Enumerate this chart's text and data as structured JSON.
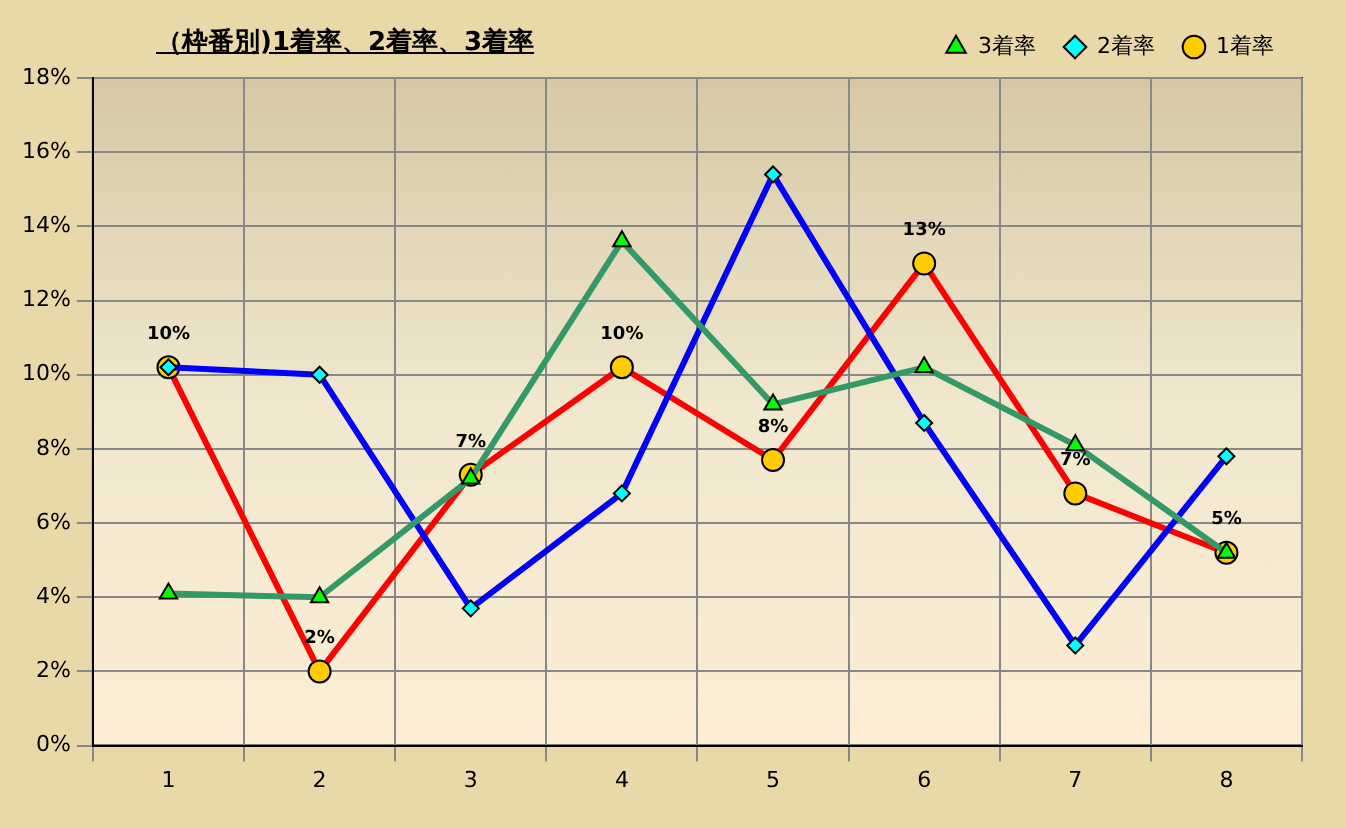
{
  "chart_data": {
    "type": "line",
    "title": "（枠番別)1着率、2着率、3着率",
    "categories": [
      "1",
      "2",
      "3",
      "4",
      "5",
      "6",
      "7",
      "8"
    ],
    "series": [
      {
        "name": "3着率",
        "color": "#339966",
        "marker": "triangle",
        "values": [
          4.1,
          4.0,
          7.2,
          13.6,
          9.2,
          10.2,
          8.1,
          5.2
        ]
      },
      {
        "name": "2着率",
        "color": "#0000ff",
        "marker": "diamond",
        "values": [
          10.2,
          10.0,
          3.7,
          6.8,
          15.4,
          8.7,
          2.7,
          7.8
        ]
      },
      {
        "name": "1着率",
        "color": "#ff0000",
        "marker": "circle",
        "values": [
          10.2,
          2.0,
          7.3,
          10.2,
          7.7,
          13.0,
          6.8,
          5.2
        ],
        "value_labels": [
          "10%",
          "2%",
          "7%",
          "10%",
          "8%",
          "13%",
          "7%",
          "5%"
        ]
      }
    ],
    "ylim": [
      0,
      18
    ],
    "yticks": [
      {
        "value": 0,
        "label": "0%"
      },
      {
        "value": 2,
        "label": "2%"
      },
      {
        "value": 4,
        "label": "4%"
      },
      {
        "value": 6,
        "label": "6%"
      },
      {
        "value": 8,
        "label": "8%"
      },
      {
        "value": 10,
        "label": "10%"
      },
      {
        "value": 12,
        "label": "12%"
      },
      {
        "value": 14,
        "label": "14%"
      },
      {
        "value": 16,
        "label": "16%"
      },
      {
        "value": 18,
        "label": "18%"
      }
    ],
    "grid": true,
    "legend": "top right",
    "line_style": "solid"
  }
}
